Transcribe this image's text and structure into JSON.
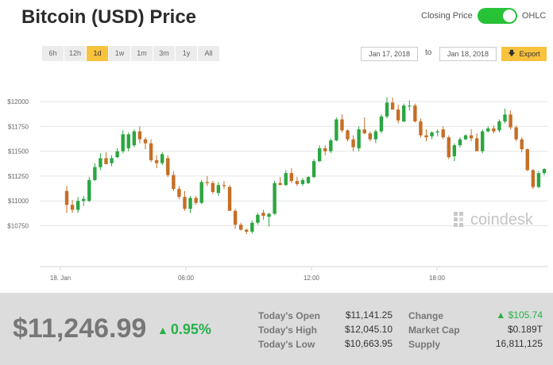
{
  "header": {
    "title": "Bitcoin (USD) Price"
  },
  "toggle": {
    "left_label": "Closing Price",
    "right_label": "OHLC"
  },
  "ranges": [
    "6h",
    "12h",
    "1d",
    "1w",
    "1m",
    "3m",
    "1y",
    "All"
  ],
  "active_range": "1d",
  "date_range": {
    "from": "Jan 17, 2018",
    "separator": "to",
    "to": "Jan 18, 2018",
    "export_label": "Export"
  },
  "watermark": "coindesk",
  "summary": {
    "price": "$11,246.99",
    "change_pct": "0.95%",
    "stats": [
      {
        "label": "Today's Open",
        "value": "$11,141.25"
      },
      {
        "label": "Today's High",
        "value": "$12,045.10"
      },
      {
        "label": "Today's Low",
        "value": "$10,663.95"
      },
      {
        "label": "Change",
        "value": "$105.74"
      },
      {
        "label": "Market Cap",
        "value": "$0.189T"
      },
      {
        "label": "Supply",
        "value": "16,811,125"
      }
    ]
  },
  "colors": {
    "up": "#2aa641",
    "down": "#c66e25",
    "accent": "#f9c23c",
    "toggle": "#27c236"
  },
  "chart_data": {
    "type": "candlestick",
    "title": "",
    "ylim": [
      10650,
      12080
    ],
    "y_ticks": [
      10750,
      11000,
      11250,
      11500,
      11750,
      12000
    ],
    "y_tick_labels": [
      "$10750",
      "$11000",
      "$11250",
      "$11500",
      "$11750",
      "$12000"
    ],
    "x_ticks": [
      "18. Jan",
      "06:00",
      "12:00",
      "18:00"
    ],
    "candles": [
      {
        "o": 11100,
        "h": 11150,
        "l": 10880,
        "c": 10960
      },
      {
        "o": 10960,
        "h": 11010,
        "l": 10880,
        "c": 10910
      },
      {
        "o": 10910,
        "h": 11040,
        "l": 10880,
        "c": 11000
      },
      {
        "o": 11000,
        "h": 11050,
        "l": 10950,
        "c": 11020
      },
      {
        "o": 11000,
        "h": 11240,
        "l": 10990,
        "c": 11210
      },
      {
        "o": 11210,
        "h": 11380,
        "l": 11200,
        "c": 11340
      },
      {
        "o": 11340,
        "h": 11480,
        "l": 11310,
        "c": 11430
      },
      {
        "o": 11430,
        "h": 11490,
        "l": 11370,
        "c": 11370
      },
      {
        "o": 11380,
        "h": 11460,
        "l": 11350,
        "c": 11430
      },
      {
        "o": 11440,
        "h": 11530,
        "l": 11430,
        "c": 11500
      },
      {
        "o": 11500,
        "h": 11710,
        "l": 11480,
        "c": 11670
      },
      {
        "o": 11530,
        "h": 11690,
        "l": 11500,
        "c": 11670
      },
      {
        "o": 11560,
        "h": 11720,
        "l": 11540,
        "c": 11700
      },
      {
        "o": 11700,
        "h": 11750,
        "l": 11580,
        "c": 11620
      },
      {
        "o": 11620,
        "h": 11640,
        "l": 11520,
        "c": 11580
      },
      {
        "o": 11580,
        "h": 11620,
        "l": 11390,
        "c": 11410
      },
      {
        "o": 11410,
        "h": 11460,
        "l": 11330,
        "c": 11380
      },
      {
        "o": 11380,
        "h": 11490,
        "l": 11360,
        "c": 11470
      },
      {
        "o": 11430,
        "h": 11460,
        "l": 11240,
        "c": 11260
      },
      {
        "o": 11260,
        "h": 11300,
        "l": 11100,
        "c": 11120
      },
      {
        "o": 11120,
        "h": 11150,
        "l": 11020,
        "c": 11040
      },
      {
        "o": 11040,
        "h": 11100,
        "l": 10900,
        "c": 10920
      },
      {
        "o": 10920,
        "h": 11050,
        "l": 10880,
        "c": 11030
      },
      {
        "o": 11030,
        "h": 11050,
        "l": 10960,
        "c": 10980
      },
      {
        "o": 10980,
        "h": 11210,
        "l": 10970,
        "c": 11190
      },
      {
        "o": 11190,
        "h": 11250,
        "l": 11150,
        "c": 11180
      },
      {
        "o": 11180,
        "h": 11200,
        "l": 11070,
        "c": 11090
      },
      {
        "o": 11080,
        "h": 11190,
        "l": 11050,
        "c": 11160
      },
      {
        "o": 11160,
        "h": 11200,
        "l": 11120,
        "c": 11150
      },
      {
        "o": 11140,
        "h": 11160,
        "l": 10900,
        "c": 10900
      },
      {
        "o": 10900,
        "h": 10920,
        "l": 10720,
        "c": 10760
      },
      {
        "o": 10760,
        "h": 10780,
        "l": 10700,
        "c": 10710
      },
      {
        "o": 10710,
        "h": 10720,
        "l": 10664,
        "c": 10690
      },
      {
        "o": 10690,
        "h": 10800,
        "l": 10670,
        "c": 10780
      },
      {
        "o": 10780,
        "h": 10880,
        "l": 10760,
        "c": 10860
      },
      {
        "o": 10880,
        "h": 10910,
        "l": 10810,
        "c": 10850
      },
      {
        "o": 10840,
        "h": 10880,
        "l": 10740,
        "c": 10870
      },
      {
        "o": 10870,
        "h": 11200,
        "l": 10860,
        "c": 11180
      },
      {
        "o": 11180,
        "h": 11240,
        "l": 11160,
        "c": 11160
      },
      {
        "o": 11160,
        "h": 11310,
        "l": 11150,
        "c": 11280
      },
      {
        "o": 11280,
        "h": 11330,
        "l": 11180,
        "c": 11200
      },
      {
        "o": 11200,
        "h": 11240,
        "l": 11150,
        "c": 11170
      },
      {
        "o": 11170,
        "h": 11230,
        "l": 11150,
        "c": 11210
      },
      {
        "o": 11180,
        "h": 11250,
        "l": 11170,
        "c": 11240
      },
      {
        "o": 11240,
        "h": 11420,
        "l": 11230,
        "c": 11400
      },
      {
        "o": 11400,
        "h": 11560,
        "l": 11390,
        "c": 11530
      },
      {
        "o": 11530,
        "h": 11560,
        "l": 11460,
        "c": 11500
      },
      {
        "o": 11500,
        "h": 11630,
        "l": 11480,
        "c": 11610
      },
      {
        "o": 11610,
        "h": 11840,
        "l": 11600,
        "c": 11820
      },
      {
        "o": 11820,
        "h": 11870,
        "l": 11690,
        "c": 11710
      },
      {
        "o": 11710,
        "h": 11720,
        "l": 11600,
        "c": 11620
      },
      {
        "o": 11620,
        "h": 11660,
        "l": 11500,
        "c": 11540
      },
      {
        "o": 11530,
        "h": 11750,
        "l": 11500,
        "c": 11720
      },
      {
        "o": 11720,
        "h": 11840,
        "l": 11670,
        "c": 11680
      },
      {
        "o": 11680,
        "h": 11700,
        "l": 11600,
        "c": 11620
      },
      {
        "o": 11620,
        "h": 11720,
        "l": 11580,
        "c": 11700
      },
      {
        "o": 11700,
        "h": 11870,
        "l": 11680,
        "c": 11850
      },
      {
        "o": 11850,
        "h": 12045,
        "l": 11830,
        "c": 11990
      },
      {
        "o": 11990,
        "h": 12040,
        "l": 11920,
        "c": 11920
      },
      {
        "o": 11920,
        "h": 11970,
        "l": 11780,
        "c": 11810
      },
      {
        "o": 11800,
        "h": 11980,
        "l": 11790,
        "c": 11960
      },
      {
        "o": 11960,
        "h": 12010,
        "l": 11910,
        "c": 11960
      },
      {
        "o": 11960,
        "h": 11980,
        "l": 11790,
        "c": 11800
      },
      {
        "o": 11800,
        "h": 11830,
        "l": 11640,
        "c": 11660
      },
      {
        "o": 11660,
        "h": 11720,
        "l": 11600,
        "c": 11640
      },
      {
        "o": 11650,
        "h": 11700,
        "l": 11620,
        "c": 11690
      },
      {
        "o": 11690,
        "h": 11720,
        "l": 11650,
        "c": 11700
      },
      {
        "o": 11720,
        "h": 11750,
        "l": 11620,
        "c": 11640
      },
      {
        "o": 11640,
        "h": 11660,
        "l": 11420,
        "c": 11440
      },
      {
        "o": 11450,
        "h": 11580,
        "l": 11400,
        "c": 11560
      },
      {
        "o": 11560,
        "h": 11640,
        "l": 11540,
        "c": 11620
      },
      {
        "o": 11620,
        "h": 11670,
        "l": 11610,
        "c": 11660
      },
      {
        "o": 11660,
        "h": 11720,
        "l": 11600,
        "c": 11630
      },
      {
        "o": 11630,
        "h": 11680,
        "l": 11500,
        "c": 11500
      },
      {
        "o": 11500,
        "h": 11720,
        "l": 11480,
        "c": 11700
      },
      {
        "o": 11700,
        "h": 11750,
        "l": 11690,
        "c": 11730
      },
      {
        "o": 11730,
        "h": 11760,
        "l": 11680,
        "c": 11700
      },
      {
        "o": 11710,
        "h": 11820,
        "l": 11690,
        "c": 11800
      },
      {
        "o": 11800,
        "h": 11930,
        "l": 11780,
        "c": 11870
      },
      {
        "o": 11870,
        "h": 11910,
        "l": 11720,
        "c": 11740
      },
      {
        "o": 11740,
        "h": 11760,
        "l": 11600,
        "c": 11620
      },
      {
        "o": 11620,
        "h": 11640,
        "l": 11490,
        "c": 11520
      },
      {
        "o": 11520,
        "h": 11530,
        "l": 11300,
        "c": 11310
      },
      {
        "o": 11310,
        "h": 11320,
        "l": 11120,
        "c": 11140
      },
      {
        "o": 11140,
        "h": 11300,
        "l": 11130,
        "c": 11280
      },
      {
        "o": 11280,
        "h": 11330,
        "l": 11260,
        "c": 11320
      }
    ]
  }
}
